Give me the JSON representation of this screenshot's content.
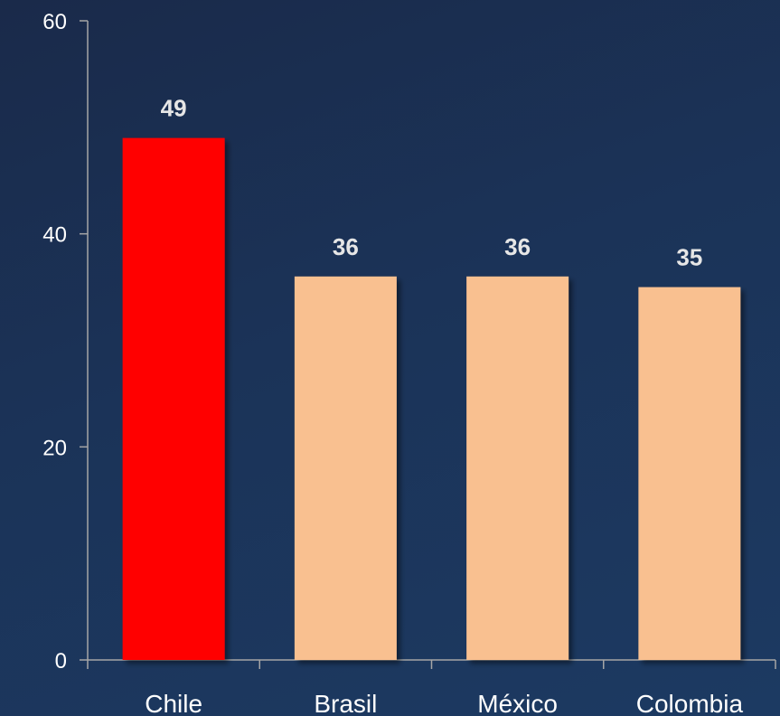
{
  "chart_data": {
    "type": "bar",
    "categories": [
      "Chile",
      "Brasil",
      "México",
      "Colombia"
    ],
    "values": [
      49,
      36,
      36,
      35
    ],
    "data_labels": [
      "49",
      "36",
      "36",
      "35"
    ],
    "bar_colors": [
      "#ff0000",
      "#f9c090",
      "#f9c090",
      "#f9c090"
    ],
    "title": "",
    "xlabel": "",
    "ylabel": "",
    "ylim": [
      0,
      60
    ],
    "yticks": [
      0,
      20,
      40,
      60
    ],
    "ytick_labels": [
      "0",
      "20",
      "40",
      "60"
    ],
    "grid": false,
    "legend": "none",
    "background": "#1b3358",
    "axis_color": "#a6a6a6",
    "label_color": "#ffffff",
    "data_label_color": "#e6e6e6"
  }
}
